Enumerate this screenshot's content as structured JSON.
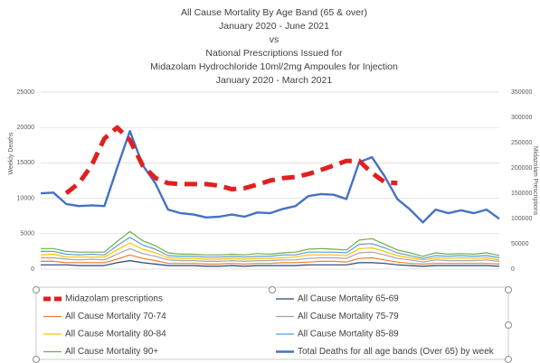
{
  "chart_data": {
    "type": "line",
    "title": [
      "All Cause Mortality By Age Band (65 & over)",
      "January 2020 - June 2021",
      "vs",
      "National Prescriptions Issued for",
      "Midazolam Hydrochloride 10ml/2mg Ampoules for Injection",
      "January 2020 - March 2021"
    ],
    "y_label": "Weekly Deaths",
    "y2_label": "Midazolam Prescriptions",
    "categories": [
      null,
      null,
      null,
      null,
      null,
      null,
      null,
      null,
      null,
      null,
      null,
      null,
      null,
      null,
      null,
      null,
      null,
      null,
      null,
      null,
      null,
      null,
      null,
      null,
      null,
      null,
      null,
      null,
      null,
      null,
      null,
      null,
      null,
      null,
      null,
      null,
      null
    ],
    "ylim": [
      0,
      25000
    ],
    "yticks": [
      0,
      5000,
      10000,
      15000,
      20000,
      25000
    ],
    "y2lim": [
      0,
      350000
    ],
    "y2ticks": [
      0,
      50000,
      100000,
      150000,
      200000,
      250000,
      300000,
      350000
    ],
    "grid": true,
    "series": [
      {
        "name": "Midazolam prescriptions",
        "color": "#e0201f",
        "axis": "y2",
        "dashed": true,
        "width": 5,
        "values": [
          null,
          null,
          150000,
          170000,
          205000,
          258000,
          280000,
          255000,
          205000,
          180000,
          170000,
          168000,
          168000,
          168000,
          165000,
          158000,
          160000,
          167000,
          175000,
          180000,
          182000,
          188000,
          196000,
          205000,
          214000,
          214000,
          190000,
          172000,
          170000,
          null,
          null,
          null,
          null,
          null,
          null,
          null,
          null
        ]
      },
      {
        "name": "All Cause Mortality 65-69",
        "color": "#264478",
        "width": 1.2,
        "values": [
          600,
          600,
          600,
          500,
          500,
          500,
          900,
          1200,
          900,
          700,
          500,
          500,
          500,
          400,
          400,
          500,
          400,
          500,
          500,
          500,
          500,
          600,
          600,
          600,
          600,
          900,
          900,
          800,
          600,
          500,
          400,
          500,
          500,
          500,
          500,
          500,
          400
        ]
      },
      {
        "name": "All Cause Mortality 70-74",
        "color": "#ed7d31",
        "width": 1.2,
        "values": [
          1100,
          1100,
          900,
          900,
          900,
          900,
          1400,
          2000,
          1500,
          1200,
          800,
          800,
          800,
          700,
          700,
          800,
          700,
          800,
          800,
          900,
          900,
          1000,
          1100,
          1100,
          1000,
          1500,
          1600,
          1300,
          1000,
          800,
          700,
          800,
          800,
          800,
          800,
          800,
          700
        ]
      },
      {
        "name": "All Cause Mortality 75-79",
        "color": "#a5a5a5",
        "width": 1.2,
        "values": [
          1600,
          1600,
          1400,
          1300,
          1400,
          1300,
          2100,
          2900,
          2200,
          1800,
          1300,
          1200,
          1200,
          1100,
          1100,
          1200,
          1100,
          1200,
          1200,
          1300,
          1300,
          1500,
          1600,
          1600,
          1500,
          2300,
          2400,
          2000,
          1500,
          1300,
          1000,
          1300,
          1200,
          1200,
          1200,
          1300,
          1100
        ]
      },
      {
        "name": "All Cause Mortality 80-84",
        "color": "#ffc000",
        "width": 1.2,
        "values": [
          2000,
          2100,
          1700,
          1700,
          1700,
          1700,
          2700,
          3700,
          2800,
          2300,
          1600,
          1500,
          1500,
          1400,
          1400,
          1500,
          1400,
          1500,
          1500,
          1600,
          1700,
          2000,
          2000,
          2000,
          1900,
          2900,
          3000,
          2500,
          1900,
          1600,
          1300,
          1600,
          1500,
          1600,
          1500,
          1600,
          1300
        ]
      },
      {
        "name": "All Cause Mortality 85-89",
        "color": "#5b9bd5",
        "width": 1.2,
        "values": [
          2500,
          2500,
          2100,
          2000,
          2100,
          2000,
          3300,
          4500,
          3400,
          2800,
          1900,
          1800,
          1800,
          1700,
          1700,
          1800,
          1700,
          1800,
          1800,
          2000,
          2000,
          2400,
          2400,
          2400,
          2300,
          3500,
          3600,
          3000,
          2300,
          1900,
          1500,
          1900,
          1800,
          1900,
          1800,
          1900,
          1600
        ]
      },
      {
        "name": "All Cause Mortality 90+",
        "color": "#70ad47",
        "width": 1.2,
        "values": [
          2900,
          2900,
          2500,
          2400,
          2400,
          2400,
          3900,
          5300,
          4000,
          3300,
          2300,
          2100,
          2100,
          2000,
          2000,
          2100,
          2000,
          2200,
          2100,
          2300,
          2400,
          2800,
          2900,
          2800,
          2700,
          4100,
          4300,
          3500,
          2700,
          2300,
          1800,
          2300,
          2100,
          2200,
          2100,
          2300,
          1900
        ]
      },
      {
        "name": "Total Deaths for all age bands (Over 65) by week",
        "color": "#4472c4",
        "width": 2.4,
        "values": [
          10700,
          10800,
          9200,
          8900,
          9000,
          8900,
          14300,
          19500,
          14700,
          12100,
          8400,
          7900,
          7700,
          7300,
          7400,
          7700,
          7400,
          8000,
          7900,
          8500,
          8900,
          10300,
          10600,
          10500,
          9900,
          15100,
          15800,
          13100,
          9900,
          8400,
          6600,
          8400,
          7900,
          8300,
          7900,
          8400,
          7100
        ]
      }
    ]
  }
}
